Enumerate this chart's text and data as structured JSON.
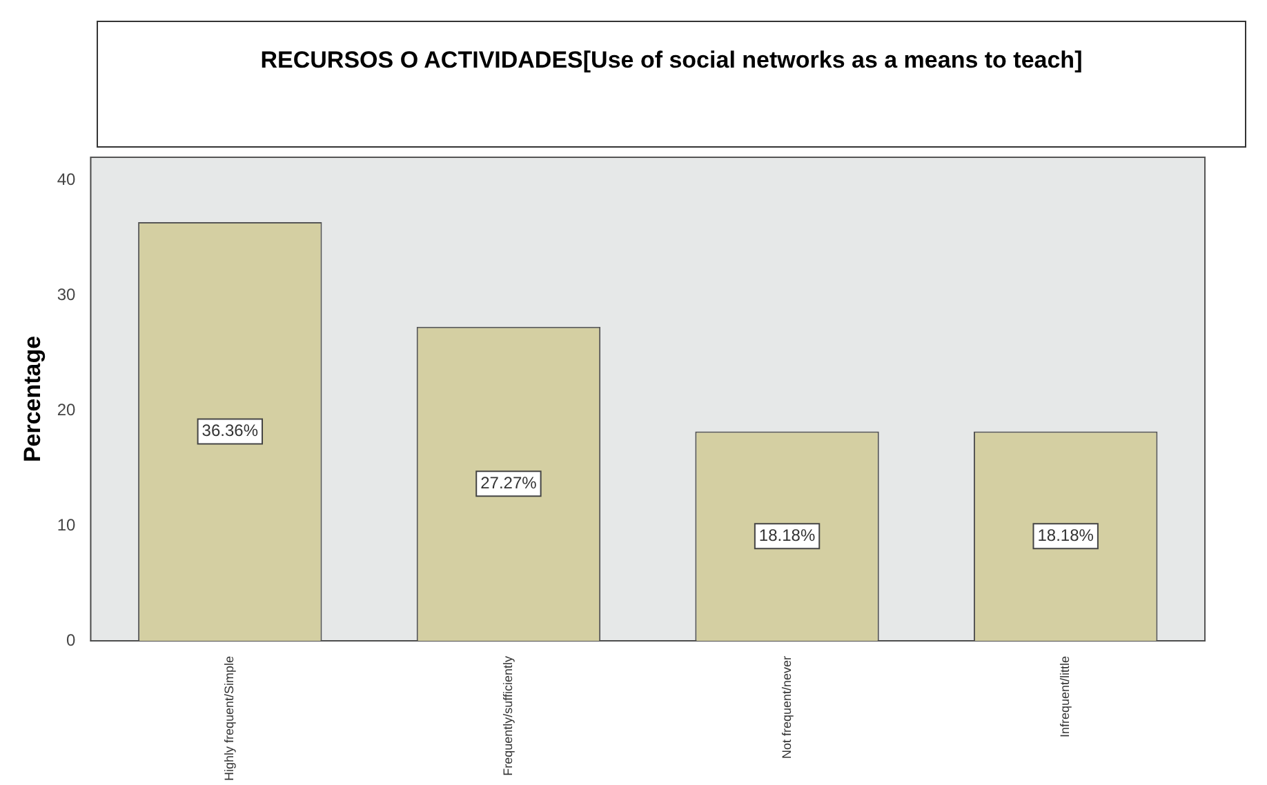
{
  "chart_data": {
    "type": "bar",
    "title": "RECURSOS O ACTIVIDADES[Use of social networks as a means to teach]",
    "ylabel": "Percentage",
    "categories": [
      "Highly frequent/Simple",
      "Frequently/sufficiently",
      "Not frequent/never",
      "Infrequent/little"
    ],
    "values": [
      36.36,
      27.27,
      18.18,
      18.18
    ],
    "value_labels": [
      "36.36%",
      "27.27%",
      "18.18%",
      "18.18%"
    ],
    "color": "#d4cfa2",
    "ylim": [
      0,
      42
    ],
    "yticks": [
      0,
      10,
      20,
      30,
      40
    ],
    "grid": false,
    "legend": false
  }
}
